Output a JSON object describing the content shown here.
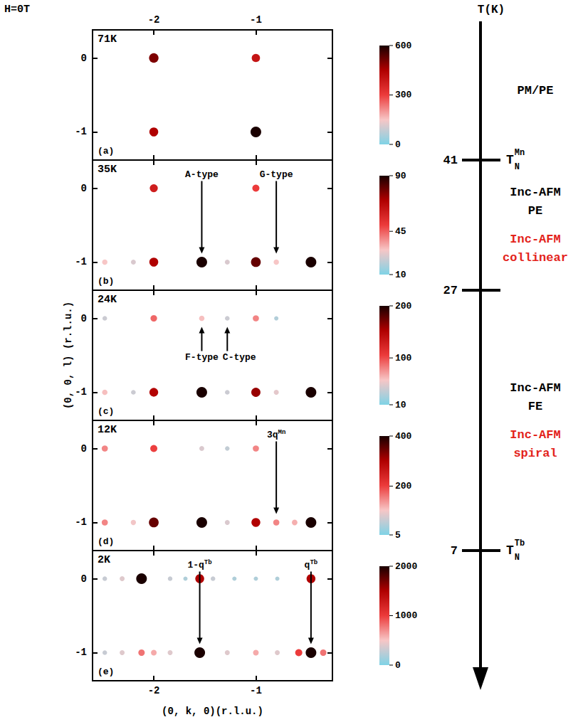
{
  "title": "H=0T",
  "x_label": "(0, k, 0)(r.l.u.)",
  "y_label": "(0, 0, l) (r.l.u.)",
  "chart_data": [
    {
      "type": "scatter",
      "title": "71K",
      "panel": "(a)",
      "xlim": [
        -2.6,
        -0.25
      ],
      "ylim": [
        -1.38,
        0.38
      ],
      "xticks": [
        -2,
        -1
      ],
      "yticks": [
        -1,
        0
      ],
      "x": [
        -2,
        -1,
        -2,
        -1
      ],
      "y": [
        0,
        0,
        -1,
        -1
      ],
      "intensity": [
        500,
        400,
        450,
        600
      ],
      "colorbar": {
        "range": [
          0,
          600
        ],
        "ticks": [
          0,
          300,
          600
        ],
        "colors": [
          "#7fd3e6",
          "#f7c6c6",
          "#ec3b3b",
          "#b00000",
          "#1a0000"
        ]
      },
      "annotations": []
    },
    {
      "type": "scatter",
      "title": "35K",
      "panel": "(b)",
      "xlim": [
        -2.6,
        -0.25
      ],
      "ylim": [
        -1.38,
        0.38
      ],
      "xticks": [
        -2,
        -1
      ],
      "yticks": [
        -1,
        0
      ],
      "x": [
        -2,
        -1,
        -2.48,
        -2.2,
        -2,
        -1.53,
        -1.28,
        -1,
        -0.8,
        -0.46
      ],
      "y": [
        0,
        0,
        -1,
        -1,
        -1,
        -1,
        -1,
        -1,
        -1,
        -1
      ],
      "intensity": [
        60,
        50,
        30,
        25,
        70,
        90,
        25,
        80,
        30,
        90
      ],
      "colorbar": {
        "range": [
          10,
          90
        ],
        "ticks": [
          10,
          45,
          90
        ],
        "colors": [
          "#7fd3e6",
          "#f7c6c6",
          "#ec3b3b",
          "#b00000",
          "#1a0000"
        ]
      },
      "annotations": [
        {
          "text": "A-type",
          "at": [
            -1.53,
            -1
          ],
          "arrow": "down"
        },
        {
          "text": "G-type",
          "at": [
            -0.8,
            -1
          ],
          "arrow": "down"
        }
      ]
    },
    {
      "type": "scatter",
      "title": "24K",
      "panel": "(c)",
      "xlim": [
        -2.6,
        -0.25
      ],
      "ylim": [
        -1.38,
        0.38
      ],
      "xticks": [
        -2,
        -1
      ],
      "yticks": [
        -1,
        0
      ],
      "x": [
        -2.48,
        -2,
        -1.53,
        -1.28,
        -1,
        -0.8,
        -2.48,
        -2.2,
        -2,
        -1.53,
        -1.28,
        -1,
        -0.8,
        -0.46
      ],
      "y": [
        0,
        0,
        0,
        0,
        0,
        0,
        -1,
        -1,
        -1,
        -1,
        -1,
        -1,
        -1,
        -1
      ],
      "intensity": [
        40,
        90,
        60,
        40,
        80,
        30,
        60,
        40,
        150,
        200,
        40,
        160,
        50,
        200
      ],
      "colorbar": {
        "range": [
          10,
          200
        ],
        "ticks": [
          10,
          100,
          200
        ],
        "colors": [
          "#7fd3e6",
          "#f7c6c6",
          "#ec3b3b",
          "#b00000",
          "#1a0000"
        ]
      },
      "annotations": [
        {
          "text": "F-type",
          "at": [
            -1.53,
            0
          ],
          "arrow": "up"
        },
        {
          "text": "C-type",
          "at": [
            -1.28,
            0
          ],
          "arrow": "up"
        }
      ]
    },
    {
      "type": "scatter",
      "title": "12K",
      "panel": "(d)",
      "xlim": [
        -2.6,
        -0.25
      ],
      "ylim": [
        -1.38,
        0.38
      ],
      "xticks": [
        -2,
        -1
      ],
      "yticks": [
        -1,
        0
      ],
      "x": [
        -2.48,
        -2,
        -1.53,
        -1.28,
        -1,
        -2.48,
        -2.2,
        -2,
        -1.53,
        -1.28,
        -1,
        -0.8,
        -0.62,
        -0.46
      ],
      "y": [
        0,
        0,
        0,
        0,
        0,
        -1,
        -1,
        -1,
        -1,
        -1,
        -1,
        -1,
        -1,
        -1
      ],
      "intensity": [
        150,
        200,
        80,
        60,
        150,
        150,
        100,
        350,
        400,
        80,
        300,
        150,
        120,
        400
      ],
      "colorbar": {
        "range": [
          5,
          400
        ],
        "ticks": [
          5,
          200,
          400
        ],
        "colors": [
          "#7fd3e6",
          "#f7c6c6",
          "#ec3b3b",
          "#b00000",
          "#1a0000"
        ]
      },
      "annotations": [
        {
          "text": "3q",
          "sup": "Mn",
          "at": [
            -0.8,
            -1
          ],
          "arrow": "down"
        }
      ]
    },
    {
      "type": "scatter",
      "title": "2K",
      "panel": "(e)",
      "xlim": [
        -2.6,
        -0.25
      ],
      "ylim": [
        -1.38,
        0.38
      ],
      "xticks": [
        -2,
        -1
      ],
      "yticks": [
        -1,
        0
      ],
      "x": [
        -2.48,
        -2.31,
        -2.12,
        -1.84,
        -1.69,
        -1.55,
        -1.42,
        -1.21,
        -1,
        -0.79,
        -0.46,
        -2.48,
        -2.31,
        -2.12,
        -2,
        -1.84,
        -1.55,
        -1.28,
        -1,
        -0.79,
        -0.58,
        -0.46,
        -0.34
      ],
      "y": [
        0,
        0,
        0,
        0,
        0,
        0,
        0,
        0,
        0,
        0,
        0,
        -1,
        -1,
        -1,
        -1,
        -1,
        -1,
        -1,
        -1,
        -1,
        -1,
        -1,
        -1
      ],
      "intensity": [
        300,
        400,
        2000,
        300,
        200,
        1500,
        300,
        200,
        200,
        200,
        1500,
        300,
        400,
        800,
        600,
        400,
        2000,
        400,
        600,
        400,
        1000,
        2000,
        800
      ],
      "colorbar": {
        "range": [
          0,
          2000
        ],
        "ticks": [
          0,
          1000,
          2000
        ],
        "colors": [
          "#7fd3e6",
          "#f7c6c6",
          "#ec3b3b",
          "#b00000",
          "#1a0000"
        ]
      },
      "annotations": [
        {
          "text": "1-q",
          "sup": "Tb",
          "at": [
            -1.55,
            -1
          ],
          "arrow": "down"
        },
        {
          "text": "q",
          "sup": "Tb",
          "at": [
            -0.46,
            -1
          ],
          "arrow": "down"
        }
      ]
    }
  ],
  "phase_diagram": {
    "axis_label": "T(K)",
    "transitions": [
      {
        "value": 41,
        "symbol": "T",
        "sub": "N",
        "sup": "Mn"
      },
      {
        "value": 27
      },
      {
        "value": 7,
        "symbol": "T",
        "sub": "N",
        "sup": "Tb"
      }
    ],
    "phases": [
      {
        "state": [
          "PM/PE"
        ]
      },
      {
        "state": [
          "Inc-AFM",
          "PE"
        ],
        "magnetic": [
          "Inc-AFM",
          "collinear"
        ]
      },
      {
        "state": [
          "Inc-AFM",
          "FE"
        ],
        "magnetic": [
          "Inc-AFM",
          "spiral"
        ]
      }
    ],
    "magnetic_color": "#e3231b"
  }
}
